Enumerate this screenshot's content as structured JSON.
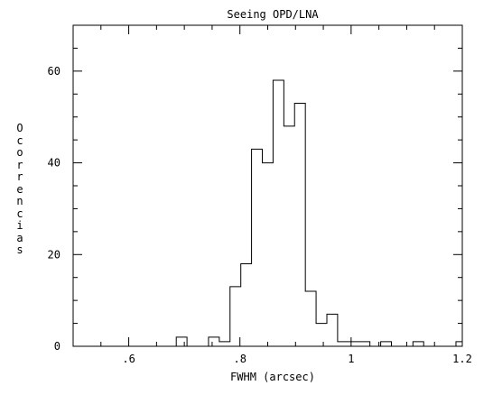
{
  "chart_data": {
    "type": "histogram",
    "title": "Seeing OPD/LNA",
    "xlabel": "FWHM (arcsec)",
    "ylabel": "Ocorrencias",
    "xlim": [
      0.5,
      1.2
    ],
    "ylim": [
      0,
      70
    ],
    "x_ticks": [
      ".6",
      ".8",
      "1",
      "1.2"
    ],
    "y_ticks": [
      "0",
      "20",
      "40",
      "60"
    ],
    "grid": false,
    "bin_width": 0.01935,
    "bins": [
      {
        "x0": 0.6855,
        "x1": 0.7048,
        "count": 2
      },
      {
        "x0": 0.7048,
        "x1": 0.7435,
        "count": 0
      },
      {
        "x0": 0.7435,
        "x1": 0.7629,
        "count": 2
      },
      {
        "x0": 0.7629,
        "x1": 0.7822,
        "count": 1
      },
      {
        "x0": 0.7822,
        "x1": 0.8016,
        "count": 13
      },
      {
        "x0": 0.8016,
        "x1": 0.8209,
        "count": 18
      },
      {
        "x0": 0.8209,
        "x1": 0.8403,
        "count": 43
      },
      {
        "x0": 0.8403,
        "x1": 0.8596,
        "count": 40
      },
      {
        "x0": 0.8596,
        "x1": 0.879,
        "count": 58
      },
      {
        "x0": 0.879,
        "x1": 0.8983,
        "count": 48
      },
      {
        "x0": 0.8983,
        "x1": 0.9177,
        "count": 53
      },
      {
        "x0": 0.9177,
        "x1": 0.937,
        "count": 12
      },
      {
        "x0": 0.937,
        "x1": 0.9564,
        "count": 5
      },
      {
        "x0": 0.9564,
        "x1": 0.9757,
        "count": 7
      },
      {
        "x0": 0.9757,
        "x1": 0.9951,
        "count": 1
      },
      {
        "x0": 0.9951,
        "x1": 1.0338,
        "count": 1
      },
      {
        "x0": 1.0338,
        "x1": 1.0532,
        "count": 0
      },
      {
        "x0": 1.0532,
        "x1": 1.0725,
        "count": 1
      },
      {
        "x0": 1.0725,
        "x1": 1.1112,
        "count": 0
      },
      {
        "x0": 1.1112,
        "x1": 1.1305,
        "count": 1
      },
      {
        "x0": 1.1305,
        "x1": 1.1886,
        "count": 0
      },
      {
        "x0": 1.1886,
        "x1": 1.2,
        "count": 1
      }
    ]
  }
}
